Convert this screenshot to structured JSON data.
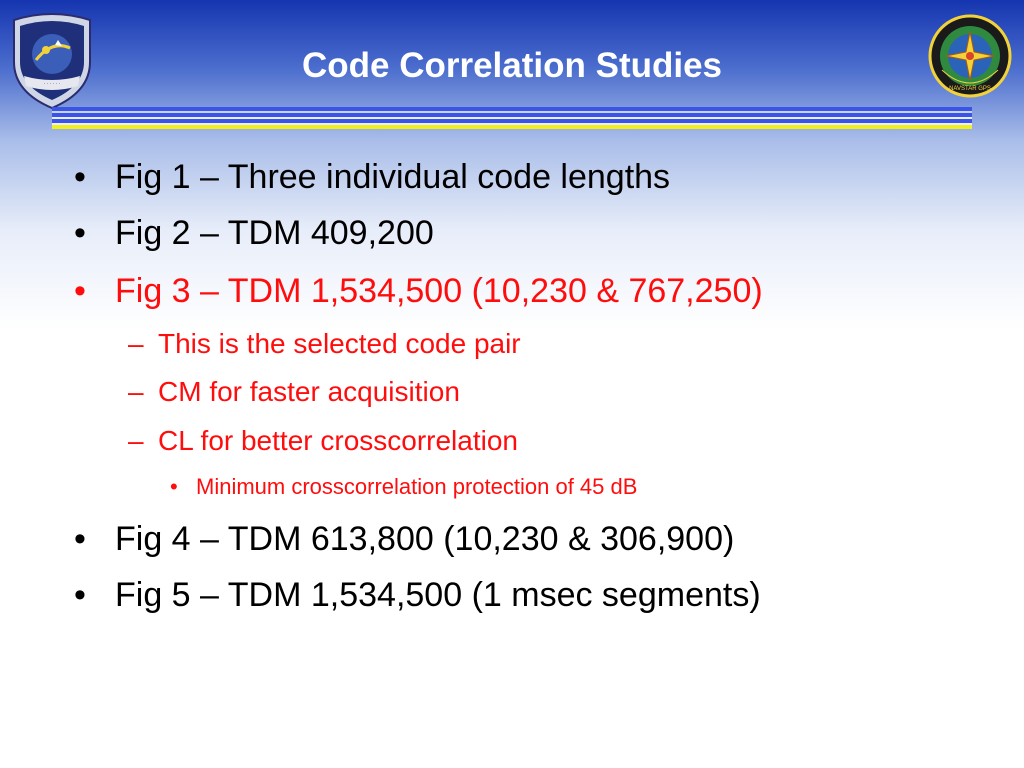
{
  "title": "Code Correlation Studies",
  "colors": {
    "title_text": "#ffffff",
    "body_text": "#000000",
    "highlight_text": "#ff0d0d",
    "rule_blue": "#3a55e6",
    "rule_yellow": "#f3ef1b",
    "header_blue": "#1535b0"
  },
  "logos": {
    "left": "air-force-shield-emblem",
    "right": "navstar-gps-emblem",
    "right_ring_text": "NAVSTAR GPS"
  },
  "bullets": [
    {
      "marker": "•",
      "text": "Fig 1 – Three individual code lengths",
      "level": 1,
      "color": "black"
    },
    {
      "marker": "•",
      "text": "Fig 2 – TDM 409,200",
      "level": 1,
      "color": "black"
    },
    {
      "marker": "•",
      "text": "Fig 3 – TDM 1,534,500 (10,230 & 767,250)",
      "level": 1,
      "color": "red"
    },
    {
      "marker": "–",
      "text": "This is the selected code pair",
      "level": 2,
      "color": "red"
    },
    {
      "marker": "–",
      "text": "CM for faster acquisition",
      "level": 2,
      "color": "red"
    },
    {
      "marker": "–",
      "text": "CL for better crosscorrelation",
      "level": 2,
      "color": "red"
    },
    {
      "marker": "•",
      "text": "Minimum crosscorrelation protection of 45 dB",
      "level": 3,
      "color": "red"
    },
    {
      "marker": "•",
      "text": "Fig 4 – TDM 613,800 (10,230 & 306,900)",
      "level": 1,
      "color": "black"
    },
    {
      "marker": "•",
      "text": "Fig 5 – TDM 1,534,500 (1 msec segments)",
      "level": 1,
      "color": "black"
    }
  ]
}
